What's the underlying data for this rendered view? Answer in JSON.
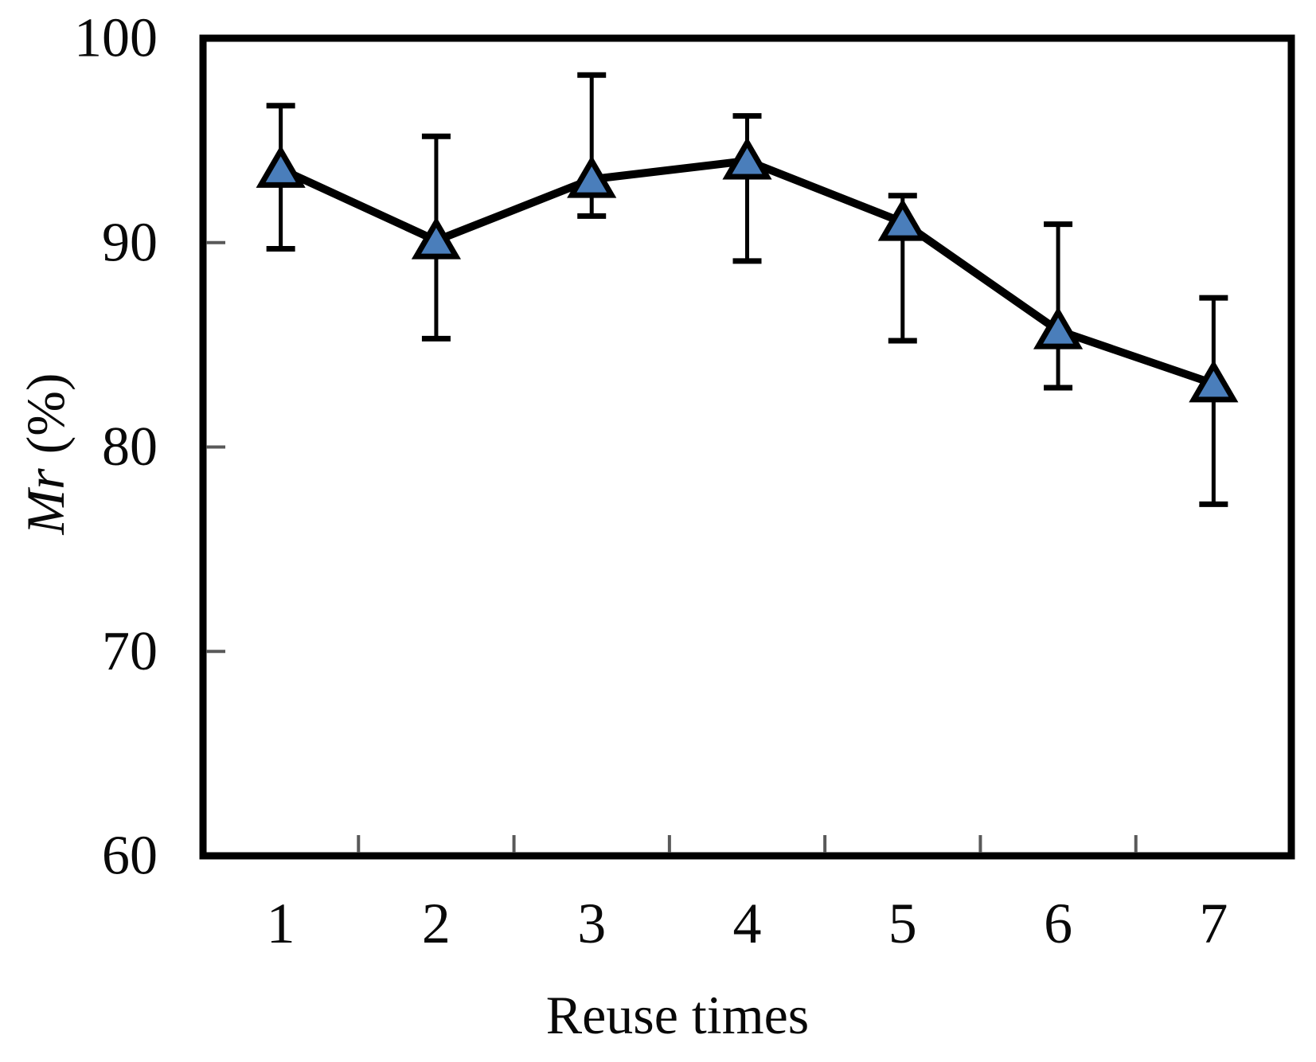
{
  "chart_data": {
    "type": "line",
    "title": "",
    "xlabel": "Reuse times",
    "ylabel": "Mr (%)",
    "ylabel_italic": "Mr",
    "ylabel_unit": "(%)",
    "categories": [
      1,
      2,
      3,
      4,
      5,
      6,
      7
    ],
    "series": [
      {
        "name": "Mr (%)",
        "values": [
          93.6,
          90.1,
          93.1,
          94.0,
          91.0,
          85.7,
          83.1
        ],
        "error_upper": [
          96.7,
          95.2,
          98.2,
          96.2,
          92.3,
          90.9,
          87.3
        ],
        "error_lower": [
          89.7,
          85.3,
          91.3,
          89.1,
          85.2,
          82.9,
          77.2
        ],
        "marker": "triangle-up",
        "marker_color": "#4a7ebb",
        "line_color": "#000000"
      }
    ],
    "ylim": [
      60,
      100
    ],
    "yticks": [
      100,
      90,
      80,
      70,
      60
    ],
    "grid": false,
    "legend": "none"
  },
  "colors": {
    "marker_fill": "#4a7ebb",
    "line": "#000000",
    "tick": "#595959",
    "background": "#ffffff"
  }
}
